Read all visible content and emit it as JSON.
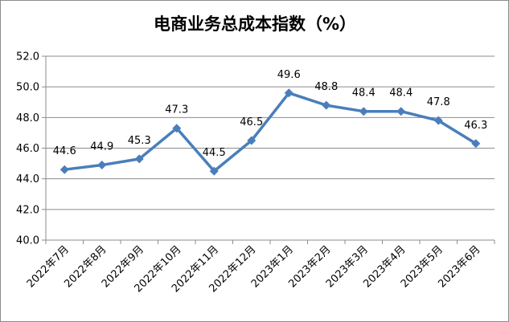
{
  "chart_data": {
    "type": "line",
    "title": "电商业务总成本指数（%）",
    "categories": [
      "2022年7月",
      "2022年8月",
      "2022年9月",
      "2022年10月",
      "2022年11月",
      "2022年12月",
      "2023年1月",
      "2023年2月",
      "2023年3月",
      "2023年4月",
      "2023年5月",
      "2023年6月"
    ],
    "series": [
      {
        "values": [
          44.6,
          44.9,
          45.3,
          47.3,
          44.5,
          46.5,
          49.6,
          48.8,
          48.4,
          48.4,
          47.8,
          46.3
        ],
        "labels": [
          "44.6",
          "44.9",
          "45.3",
          "47.3",
          "44.5",
          "46.5",
          "49.6",
          "48.8",
          "48.4",
          "48.4",
          "47.8",
          "46.3"
        ]
      }
    ],
    "ylim": [
      40.0,
      52.0
    ],
    "yticks": [
      "40.0",
      "42.0",
      "44.0",
      "46.0",
      "48.0",
      "50.0",
      "52.0"
    ],
    "xlabel": "",
    "ylabel": "",
    "grid": true,
    "marker": "diamond",
    "line_color": "#4a7ebb"
  }
}
